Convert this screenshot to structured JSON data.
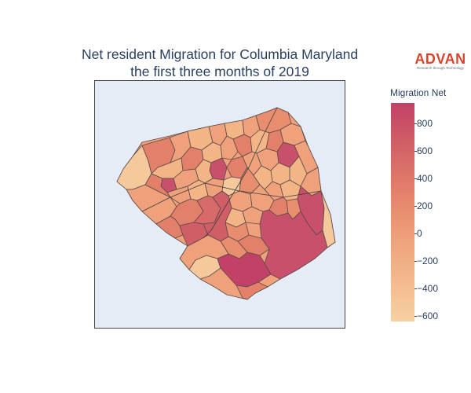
{
  "title": {
    "line1": "Net resident Migration for Columbia Maryland",
    "line2": "the first three months of 2019"
  },
  "logo": {
    "name": "ADVAN",
    "tagline": "Research through Technology"
  },
  "colorbar": {
    "title": "Migration Net",
    "ticks": [
      "−600",
      "−400",
      "−200",
      "0",
      "200",
      "400",
      "600",
      "800"
    ],
    "tick_values": [
      -600,
      -400,
      -200,
      0,
      200,
      400,
      600,
      800
    ],
    "range": [
      -640,
      950
    ],
    "colors": [
      "#f7d1a3",
      "#f3ba8e",
      "#eea17a",
      "#e3806a",
      "#d05e66",
      "#c14167"
    ]
  },
  "colors": {
    "background": "#e5ecf6",
    "region_border": "#5a4a4a",
    "text": "#2a3f5f"
  }
}
